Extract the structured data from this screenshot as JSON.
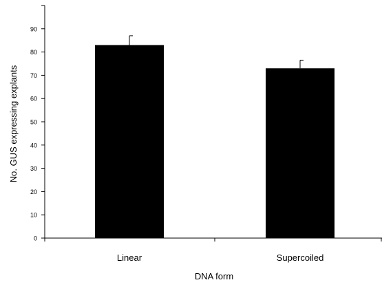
{
  "chart_data": {
    "type": "bar",
    "categories": [
      "Linear",
      "Supercoiled"
    ],
    "values": [
      83,
      73
    ],
    "errors": [
      4,
      3.5
    ],
    "xlabel": "DNA form",
    "ylabel": "No. GUS expressing explants",
    "ylim": [
      0,
      100
    ],
    "yticks": [
      0,
      10,
      20,
      30,
      40,
      50,
      60,
      70,
      80,
      90
    ],
    "grid": false,
    "legend": "none",
    "bar_color": "#000000"
  }
}
